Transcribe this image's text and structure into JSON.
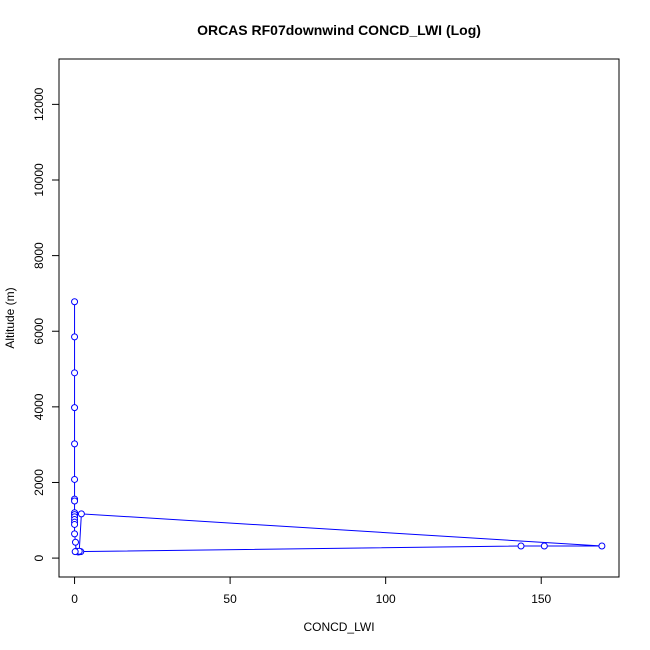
{
  "chart_data": {
    "type": "line",
    "title": "ORCAS RF07downwind CONCD_LWI (Log)",
    "xlabel": "CONCD_LWI",
    "ylabel": "Altitude (m)",
    "xlim": [
      -5.0,
      175.0
    ],
    "ylim": [
      -500,
      13200
    ],
    "xticks": [
      0,
      50,
      100,
      150
    ],
    "yticks": [
      0,
      2000,
      4000,
      6000,
      8000,
      10000,
      12000
    ],
    "grid": false,
    "legend": "none",
    "series": [
      {
        "color": "#0000ff",
        "marker": "open-circle",
        "points": [
          {
            "x": 0.0,
            "y": 6780
          },
          {
            "x": 0.0,
            "y": 5850
          },
          {
            "x": 0.0,
            "y": 4900
          },
          {
            "x": 0.0,
            "y": 3980
          },
          {
            "x": 0.0,
            "y": 3020
          },
          {
            "x": 0.0,
            "y": 2080
          },
          {
            "x": 0.0,
            "y": 1560
          },
          {
            "x": 0.0,
            "y": 1510
          },
          {
            "x": 0.0,
            "y": 1200
          },
          {
            "x": 0.0,
            "y": 1150
          },
          {
            "x": 0.0,
            "y": 1090
          },
          {
            "x": 0.0,
            "y": 1020
          },
          {
            "x": 0.0,
            "y": 950
          },
          {
            "x": 0.0,
            "y": 890
          },
          {
            "x": 0.0,
            "y": 640
          },
          {
            "x": 0.3,
            "y": 420
          },
          {
            "x": 0.5,
            "y": 180
          },
          {
            "x": 1.2,
            "y": 160
          },
          {
            "x": 2.0,
            "y": 170
          },
          {
            "x": 1.5,
            "y": 180
          },
          {
            "x": 2.2,
            "y": 1170
          },
          {
            "x": 169.5,
            "y": 320
          },
          {
            "x": 151.0,
            "y": 320
          },
          {
            "x": 143.5,
            "y": 320
          },
          {
            "x": 0.2,
            "y": 170
          }
        ]
      }
    ]
  }
}
